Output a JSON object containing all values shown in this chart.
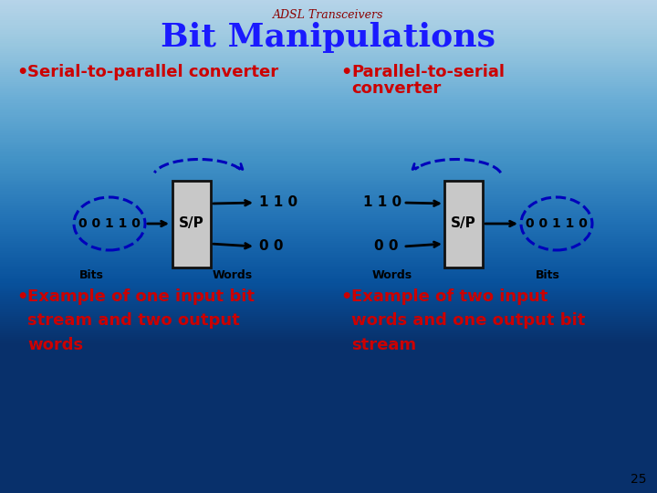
{
  "title": "Bit Manipulations",
  "subtitle": "ADSL Transceivers",
  "title_color": "#1a1aff",
  "subtitle_color": "#8b0000",
  "bullet_color": "#cc0000",
  "dashed_circle_color": "#0000bb",
  "box_color": "#c8c8c8",
  "box_edge_color": "#111111",
  "page_number": "25",
  "bullet1": "Serial-to-parallel converter",
  "bullet2_line1": "Parallel-to-serial",
  "bullet2_line2": "converter",
  "desc1_bits": "Bits",
  "desc1_words": "Words",
  "desc1_bullet": "Example of one input bit\nstream and two output\nwords",
  "desc2_words": "Words",
  "desc2_bits": "Bits",
  "desc2_bullet": "Example of two input\nwords and one output bit\nstream",
  "sp_label": "S/P",
  "input_bits_left": "0 0 1 1 0",
  "output_top": "1 1 0",
  "output_bottom": "0 0",
  "input_top_right": "1 1 0",
  "input_bottom_right": "0 0",
  "output_bits_right": "0 0 1 1 0",
  "bg_top": "#f0f4fa",
  "bg_bottom": "#b8cfe8"
}
